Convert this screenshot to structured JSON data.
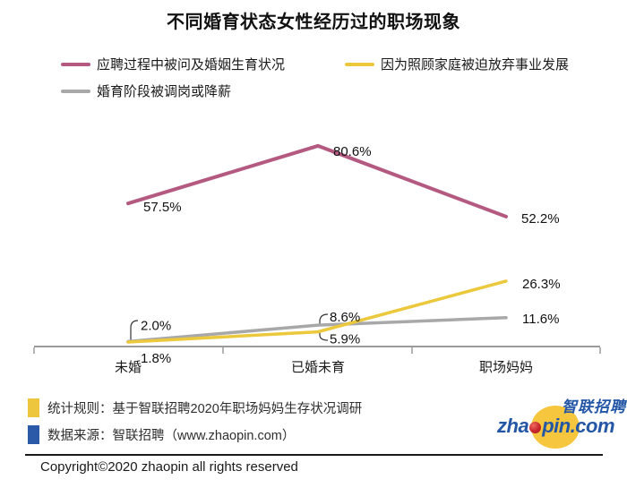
{
  "title": "不同婚育状态女性经历过的职场现象",
  "chart_data": {
    "type": "line",
    "categories": [
      "未婚",
      "已婚未育",
      "职场妈妈"
    ],
    "series": [
      {
        "name": "应聘过程中被问及婚姻生育状况",
        "values": [
          57.5,
          80.6,
          52.2
        ],
        "color": "#b45a80"
      },
      {
        "name": "因为照顾家庭被迫放弃事业发展",
        "values": [
          1.8,
          5.9,
          26.3
        ],
        "color": "#ecc83d"
      },
      {
        "name": "婚育阶段被调岗或降薪",
        "values": [
          2.0,
          8.6,
          11.6
        ],
        "color": "#a8a8a8"
      }
    ],
    "title": "不同婚育状态女性经历过的职场现象",
    "xlabel": "",
    "ylabel": "",
    "ylim": [
      0,
      90
    ],
    "grid": false,
    "legend_position": "top-left, two columns",
    "data_label_format": "one decimal percent"
  },
  "footer": {
    "source_rows": [
      {
        "label": "统计规则：基于智联招聘2020年职场妈妈生存状况调研",
        "bullet_color": "#edc63e"
      },
      {
        "label": "数据来源：智联招聘（www.zhaopin.com）",
        "bullet_color": "#2b5ba8"
      }
    ],
    "copyright": "Copyright©2020  zhaopin all rights reserved",
    "logo": {
      "cn": "智联招聘",
      "en_prefix": "zha",
      "en_suffix": "pin.com"
    }
  },
  "colors": {
    "axis": "#9b9b9b",
    "text": "#111111",
    "leader_line": "#333333"
  }
}
